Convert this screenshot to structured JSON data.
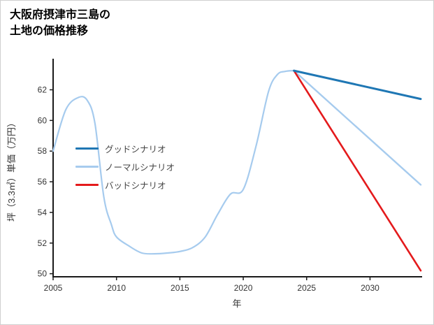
{
  "page": {
    "title_lines": [
      "大阪府摂津市三島の",
      "土地の価格推移"
    ]
  },
  "chart_data": {
    "type": "line",
    "title": "大阪府摂津市三島の土地の価格推移",
    "xlabel": "年",
    "ylabel": "坪（3.3㎡）単価（万円）",
    "xlim": [
      2005,
      2034
    ],
    "ylim": [
      49.8,
      63.8
    ],
    "x_ticks": [
      2005,
      2010,
      2015,
      2020,
      2025,
      2030
    ],
    "y_ticks": [
      50,
      52,
      54,
      56,
      58,
      60,
      62
    ],
    "grid": false,
    "legend_position": "inside-left",
    "colors": {
      "good": "#1f77b4",
      "normal": "#a6cbee",
      "bad": "#e41a1c",
      "axis": "#1a1a1a"
    },
    "legend": [
      {
        "key": "good",
        "label": "グッドシナリオ"
      },
      {
        "key": "normal",
        "label": "ノーマルシナリオ"
      },
      {
        "key": "bad",
        "label": "バッドシナリオ"
      }
    ],
    "series": [
      {
        "id": "history",
        "key": "normal",
        "width": 2.2,
        "smooth": true,
        "x": [
          2005,
          2006,
          2007,
          2007.7,
          2008.3,
          2009,
          2009.6,
          2010,
          2011,
          2012,
          2013,
          2014,
          2015,
          2016,
          2017,
          2018,
          2019,
          2020,
          2021,
          2022,
          2022.7,
          2023.3,
          2024
        ],
        "y": [
          58,
          60.7,
          61.5,
          61.3,
          59.8,
          55.0,
          53.2,
          52.4,
          51.8,
          51.35,
          51.3,
          51.35,
          51.45,
          51.7,
          52.4,
          53.9,
          55.2,
          55.5,
          58.3,
          61.9,
          63.0,
          63.2,
          63.25
        ]
      },
      {
        "id": "forecast-normal",
        "key": "normal",
        "width": 2.4,
        "smooth": false,
        "x": [
          2024,
          2034
        ],
        "y": [
          63.25,
          55.8
        ]
      },
      {
        "id": "forecast-bad",
        "key": "bad",
        "width": 2.6,
        "smooth": false,
        "x": [
          2024,
          2034
        ],
        "y": [
          63.25,
          50.2
        ]
      },
      {
        "id": "forecast-good",
        "key": "good",
        "width": 3,
        "smooth": false,
        "x": [
          2024,
          2034
        ],
        "y": [
          63.25,
          61.4
        ]
      }
    ]
  }
}
